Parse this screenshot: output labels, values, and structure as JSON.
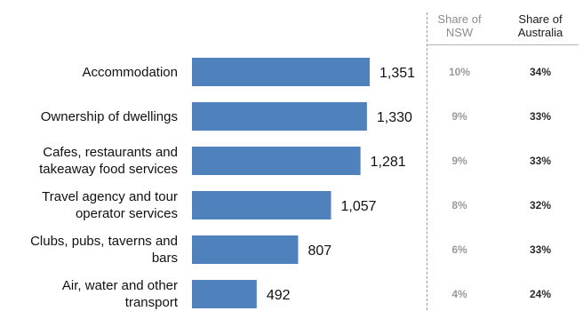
{
  "chart_data": {
    "type": "bar",
    "orientation": "horizontal",
    "categories": [
      [
        "Accommodation"
      ],
      [
        "Ownership of dwellings"
      ],
      [
        "Cafes, restaurants and",
        "takeaway food services"
      ],
      [
        "Travel agency and tour",
        "operator services"
      ],
      [
        "Clubs, pubs, taverns and",
        "bars"
      ],
      [
        "Air, water and other",
        "transport"
      ]
    ],
    "values": [
      1351,
      1330,
      1281,
      1057,
      807,
      492
    ],
    "value_labels": [
      "1,351",
      "1,330",
      "1,281",
      "1,057",
      "807",
      "492"
    ],
    "bar_color": "#4f81bd",
    "grid": false,
    "table_columns": {
      "nsw": {
        "header": [
          "Share of",
          "NSW"
        ],
        "values": [
          "10%",
          "9%",
          "9%",
          "8%",
          "6%",
          "4%"
        ]
      },
      "australia": {
        "header": [
          "Share of",
          "Australia"
        ],
        "values": [
          "34%",
          "33%",
          "33%",
          "32%",
          "33%",
          "24%"
        ]
      }
    }
  }
}
